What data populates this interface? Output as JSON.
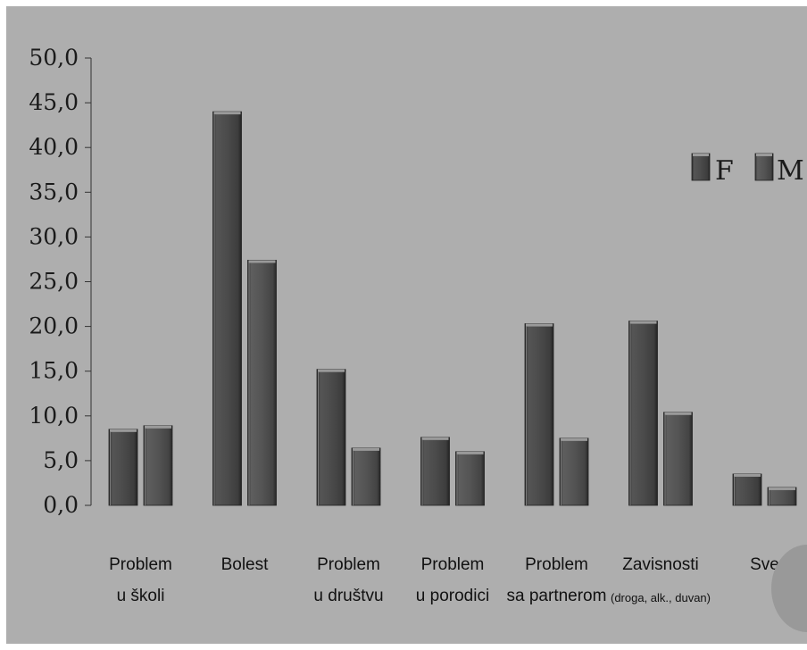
{
  "chart_data": {
    "type": "bar",
    "categories": [
      {
        "line1": "Problem",
        "line2": "u školi",
        "small": false
      },
      {
        "line1": "Bolest",
        "line2": "",
        "small": false
      },
      {
        "line1": "Problem",
        "line2": "u društvu",
        "small": false
      },
      {
        "line1": "Problem",
        "line2": "u porodici",
        "small": false
      },
      {
        "line1": "Problem",
        "line2": "sa partnerom",
        "small": false
      },
      {
        "line1": "Zavisnosti",
        "line2": "(droga, alk., duvan)",
        "small": true
      },
      {
        "line1": "Sve",
        "line2": "",
        "small": false
      }
    ],
    "series": [
      {
        "name": "F",
        "values": [
          8.5,
          44.0,
          15.2,
          7.6,
          20.3,
          20.6,
          3.5
        ]
      },
      {
        "name": "M",
        "values": [
          8.9,
          27.4,
          6.4,
          6.0,
          7.5,
          10.4,
          2.0
        ]
      }
    ],
    "ylim": [
      0,
      50
    ],
    "yticks": [
      "0,0",
      "5,0",
      "10,0",
      "15,0",
      "20,0",
      "25,0",
      "30,0",
      "35,0",
      "40,0",
      "45,0",
      "50,0"
    ],
    "legend_position": "right",
    "grid": false,
    "colors": {
      "background": "#aeaeae",
      "bar": "#4e4e4e",
      "bar_dark": "#2e2e2e",
      "bar_light": "#8a8a8a",
      "axis": "#333333"
    }
  }
}
